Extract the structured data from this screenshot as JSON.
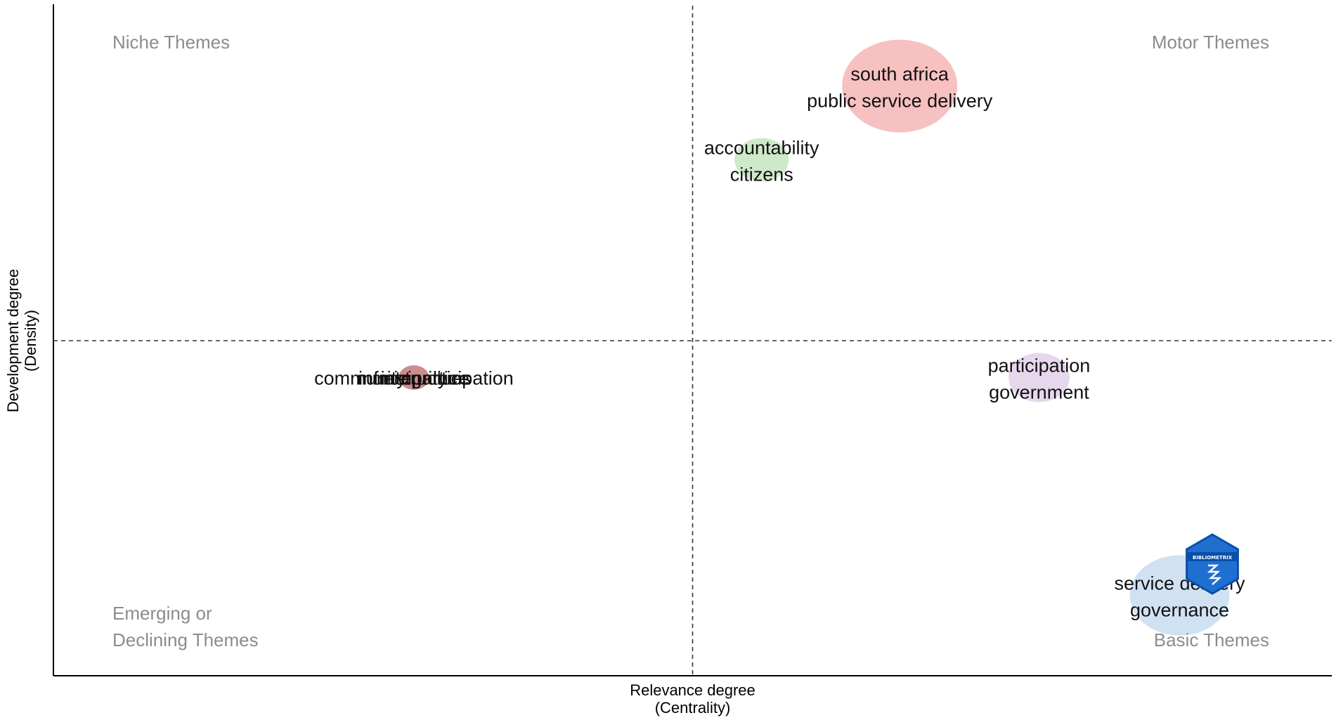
{
  "chart_data": {
    "type": "scatter",
    "subtype": "bubble-quadrant",
    "title": "",
    "xlabel": "Relevance degree\n(Centrality)",
    "ylabel": "Development degree\n(Density)",
    "xlim": [
      0,
      1
    ],
    "ylim": [
      0,
      1
    ],
    "x_split": 0.5,
    "y_split": 0.5,
    "grid": false,
    "quadrant_labels": {
      "top_left": "Niche Themes",
      "top_right": "Motor Themes",
      "bottom_left": "Emerging or\nDeclining Themes",
      "bottom_right": "Basic Themes"
    },
    "themes": [
      {
        "labels": [
          "south africa",
          "public service delivery"
        ],
        "x": 0.662,
        "y": 0.88,
        "size": 1.0,
        "color": "#f4a6a6"
      },
      {
        "labels": [
          "accountability",
          "citizens"
        ],
        "x": 0.554,
        "y": 0.77,
        "size": 0.22,
        "color": "#b9dfb2"
      },
      {
        "labels": [
          "community participation",
          "infrastructure",
          "municipalities",
          "integrity"
        ],
        "x": 0.282,
        "y": 0.445,
        "size": 0.07,
        "color": "#b85c5c"
      },
      {
        "labels": [
          "participation",
          "government"
        ],
        "x": 0.771,
        "y": 0.445,
        "size": 0.28,
        "color": "#dcc6e6"
      },
      {
        "labels": [
          "service delivery",
          "governance"
        ],
        "x": 0.881,
        "y": 0.12,
        "size": 0.75,
        "color": "#bcd5ec"
      }
    ],
    "logo_text": "BIBLIOMETRIX",
    "logo_color": "#1f6fd1"
  }
}
